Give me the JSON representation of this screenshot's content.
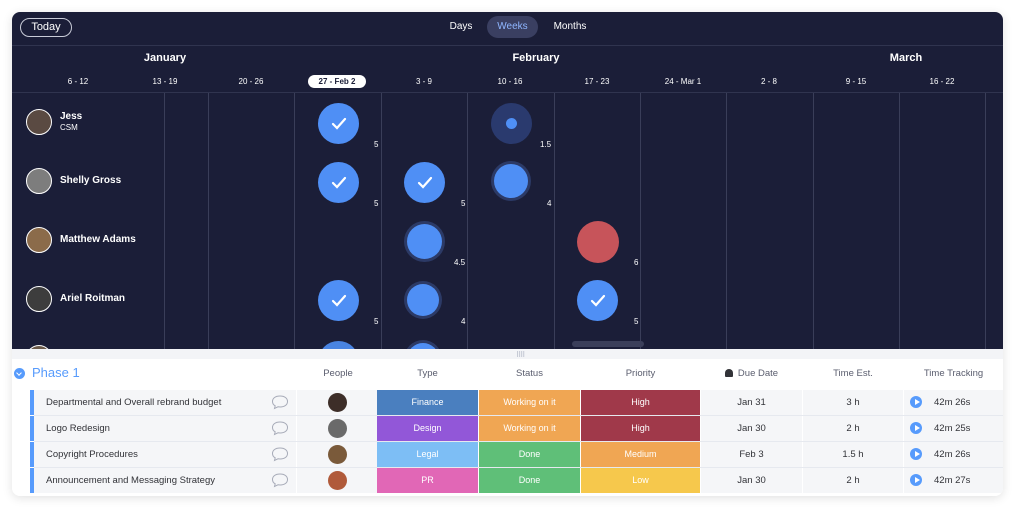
{
  "toolbar": {
    "today_label": "Today",
    "scales": [
      {
        "label": "Days",
        "active": false
      },
      {
        "label": "Weeks",
        "active": true
      },
      {
        "label": "Months",
        "active": false
      }
    ]
  },
  "timeline": {
    "months": [
      "January",
      "February",
      "March"
    ],
    "weeks": [
      "6 - 12",
      "13 - 19",
      "20 - 26",
      "27 - Feb 2",
      "3 - 9",
      "10 - 16",
      "17 - 23",
      "24 - Mar 1",
      "2 - 8",
      "9 - 15",
      "16 - 22"
    ],
    "current_week": "27 - Feb 2",
    "people": [
      {
        "name": "Jess",
        "role": "CSM",
        "avatar_color": "#5a4a42"
      },
      {
        "name": "Shelly Gross",
        "role": "",
        "avatar_color": "#7d7d7d"
      },
      {
        "name": "Matthew Adams",
        "role": "",
        "avatar_color": "#8b6b4a"
      },
      {
        "name": "Ariel Roitman",
        "role": "",
        "avatar_color": "#3d3d3d"
      }
    ],
    "workloads": [
      {
        "person": "Jess",
        "week": "27 - Feb 2",
        "hours": "5",
        "state": "done"
      },
      {
        "person": "Jess",
        "week": "10 - 16",
        "hours": "1.5",
        "state": "low"
      },
      {
        "person": "Shelly Gross",
        "week": "27 - Feb 2",
        "hours": "5",
        "state": "done"
      },
      {
        "person": "Shelly Gross",
        "week": "3 - 9",
        "hours": "5",
        "state": "done"
      },
      {
        "person": "Shelly Gross",
        "week": "10 - 16",
        "hours": "4",
        "state": "ok"
      },
      {
        "person": "Matthew Adams",
        "week": "3 - 9",
        "hours": "4.5",
        "state": "ok"
      },
      {
        "person": "Matthew Adams",
        "week": "17 - 23",
        "hours": "6",
        "state": "overload"
      },
      {
        "person": "Ariel Roitman",
        "week": "27 - Feb 2",
        "hours": "5",
        "state": "done"
      },
      {
        "person": "Ariel Roitman",
        "week": "3 - 9",
        "hours": "4",
        "state": "ok"
      },
      {
        "person": "Ariel Roitman",
        "week": "17 - 23",
        "hours": "5",
        "state": "done"
      }
    ],
    "colors": {
      "bubble": "#4f8ff5",
      "overload": "#c7545a",
      "background": "#1b1e38"
    }
  },
  "board": {
    "group_title": "Phase 1",
    "group_color": "#579bfc",
    "columns": {
      "people": "People",
      "type": "Type",
      "status": "Status",
      "priority": "Priority",
      "due_date": "Due Date",
      "time_est": "Time Est.",
      "time_tracking": "Time Tracking"
    },
    "rows": [
      {
        "item": "Departmental and Overall rebrand budget",
        "type": "Finance",
        "type_color": "#4a7fbf",
        "status": "Working on it",
        "status_color": "#f0a653",
        "priority": "High",
        "priority_color": "#a0394a",
        "due": "Jan 31",
        "est": "3 h",
        "tracked": "42m 26s",
        "avatar_color": "#3d2e28"
      },
      {
        "item": "Logo Redesign",
        "type": "Design",
        "type_color": "#9257d8",
        "status": "Working on it",
        "status_color": "#f0a653",
        "priority": "High",
        "priority_color": "#a0394a",
        "due": "Jan 30",
        "est": "2 h",
        "tracked": "42m 25s",
        "avatar_color": "#6a6a6a"
      },
      {
        "item": "Copyright Procedures",
        "type": "Legal",
        "type_color": "#7dbef5",
        "status": "Done",
        "status_color": "#5fbf78",
        "priority": "Medium",
        "priority_color": "#f0a653",
        "due": "Feb 3",
        "est": "1.5 h",
        "tracked": "42m 26s",
        "avatar_color": "#7a5a3a"
      },
      {
        "item": "Announcement and Messaging Strategy",
        "type": "PR",
        "type_color": "#e167b6",
        "status": "Done",
        "status_color": "#5fbf78",
        "priority": "Low",
        "priority_color": "#f6c84c",
        "due": "Jan 30",
        "est": "2 h",
        "tracked": "42m 27s",
        "avatar_color": "#b05a3a"
      }
    ]
  }
}
